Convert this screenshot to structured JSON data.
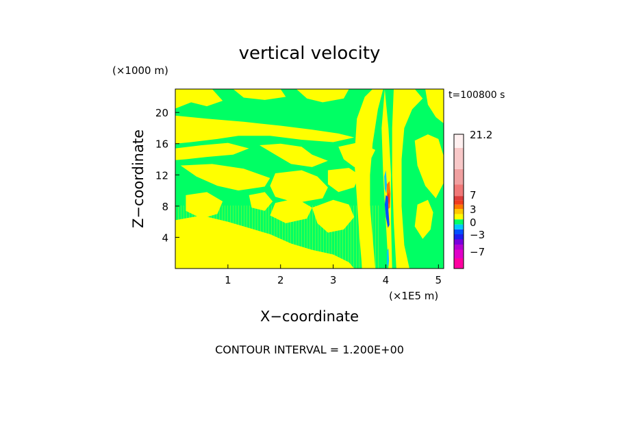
{
  "chart_data": {
    "type": "heatmap",
    "title": "vertical velocity",
    "xlabel": "X−coordinate",
    "ylabel": "Z−coordinate",
    "x_unit": "(×1E5 m)",
    "y_unit": "(×1000 m)",
    "time_label": "t=100800 s",
    "footer": "CONTOUR INTERVAL = 1.200E+00",
    "xlim": [
      0,
      5.1
    ],
    "ylim": [
      0,
      23
    ],
    "x_ticks": [
      1,
      2,
      3,
      4,
      5
    ],
    "y_ticks": [
      4,
      8,
      12,
      16,
      20
    ],
    "colorbar_labels": [
      {
        "value": 21.2,
        "text": "21.2"
      },
      {
        "value": 7,
        "text": "7"
      },
      {
        "value": 3,
        "text": "3"
      },
      {
        "value": 0,
        "text": "0"
      },
      {
        "value": -3,
        "text": "−3"
      },
      {
        "value": -7,
        "text": "−7"
      }
    ],
    "colorbar_levels": [
      {
        "from": -9.0,
        "to": -7.8,
        "color": "#ff00a0"
      },
      {
        "from": -7.8,
        "to": -6.6,
        "color": "#e000c8"
      },
      {
        "from": -6.6,
        "to": -5.4,
        "color": "#b400d2"
      },
      {
        "from": -5.4,
        "to": -4.2,
        "color": "#7800dc"
      },
      {
        "from": -4.2,
        "to": -3.0,
        "color": "#1e1ef0"
      },
      {
        "from": -3.0,
        "to": -1.8,
        "color": "#0050ff"
      },
      {
        "from": -1.8,
        "to": -0.6,
        "color": "#00c8ff"
      },
      {
        "from": -0.6,
        "to": 0.6,
        "color": "#00ff64"
      },
      {
        "from": 0.6,
        "to": 1.8,
        "color": "#ffff00"
      },
      {
        "from": 1.8,
        "to": 3.0,
        "color": "#ffc800"
      },
      {
        "from": 3.0,
        "to": 4.2,
        "color": "#ff7800"
      },
      {
        "from": 4.2,
        "to": 5.4,
        "color": "#f03c1e"
      },
      {
        "from": 5.4,
        "to": 6.6,
        "color": "#dc3c3c"
      },
      {
        "from": 6.6,
        "to": 9.4,
        "color": "#f07878"
      },
      {
        "from": 9.4,
        "to": 13.0,
        "color": "#f0a0a0"
      },
      {
        "from": 13.0,
        "to": 18.0,
        "color": "#f8c8c8"
      },
      {
        "from": 18.0,
        "to": 21.2,
        "color": "#fff0f0"
      }
    ],
    "field_colors": {
      "background": "#00ff64",
      "positive": "#ffff00",
      "updraft_core": "#ff7800",
      "updraft_strong": "#f03c1e",
      "downdraft": "#1e1ef0",
      "downdraft_weak": "#00c8ff"
    },
    "regions": [
      {
        "value": 1,
        "polygon": [
          [
            0,
            23
          ],
          [
            0.7,
            23
          ],
          [
            0.9,
            21.5
          ],
          [
            0.6,
            20.8
          ],
          [
            0.3,
            21.3
          ],
          [
            0,
            20.5
          ]
        ]
      },
      {
        "value": 1,
        "polygon": [
          [
            1.1,
            23
          ],
          [
            2.0,
            23
          ],
          [
            2.1,
            22
          ],
          [
            1.7,
            21.6
          ],
          [
            1.3,
            21.9
          ]
        ]
      },
      {
        "value": 1,
        "polygon": [
          [
            2.3,
            23
          ],
          [
            3.3,
            23
          ],
          [
            3.2,
            21.8
          ],
          [
            2.8,
            21.3
          ],
          [
            2.5,
            21.8
          ]
        ]
      },
      {
        "value": 1,
        "polygon": [
          [
            0,
            19.6
          ],
          [
            0.6,
            19.2
          ],
          [
            1.3,
            18.8
          ],
          [
            2.0,
            18.3
          ],
          [
            2.6,
            17.8
          ],
          [
            3.1,
            17.3
          ],
          [
            3.4,
            16.8
          ],
          [
            3.0,
            16.2
          ],
          [
            2.4,
            16.5
          ],
          [
            1.8,
            17.0
          ],
          [
            1.2,
            17.0
          ],
          [
            0.8,
            16.6
          ],
          [
            0.3,
            16.2
          ],
          [
            0,
            16.0
          ]
        ]
      },
      {
        "value": 1,
        "polygon": [
          [
            0,
            15.4
          ],
          [
            0.5,
            15.8
          ],
          [
            1.0,
            16.1
          ],
          [
            1.4,
            15.4
          ],
          [
            1.1,
            14.6
          ],
          [
            0.6,
            14.3
          ],
          [
            0.2,
            14.0
          ],
          [
            0,
            13.9
          ]
        ]
      },
      {
        "value": 1,
        "polygon": [
          [
            1.6,
            15.8
          ],
          [
            2.0,
            16.0
          ],
          [
            2.4,
            15.6
          ],
          [
            2.6,
            14.6
          ],
          [
            2.9,
            13.8
          ],
          [
            2.6,
            13.0
          ],
          [
            2.2,
            13.4
          ],
          [
            1.9,
            14.6
          ]
        ]
      },
      {
        "value": 1,
        "polygon": [
          [
            3.1,
            15.6
          ],
          [
            3.5,
            16.2
          ],
          [
            3.8,
            15.2
          ],
          [
            3.7,
            13.8
          ],
          [
            3.4,
            13.0
          ],
          [
            3.2,
            14.0
          ]
        ]
      },
      {
        "value": 1,
        "polygon": [
          [
            0.1,
            13.2
          ],
          [
            0.7,
            13.4
          ],
          [
            1.3,
            12.8
          ],
          [
            1.8,
            11.6
          ],
          [
            1.7,
            10.5
          ],
          [
            1.2,
            10.0
          ],
          [
            0.8,
            10.6
          ],
          [
            0.4,
            11.8
          ]
        ]
      },
      {
        "value": 1,
        "polygon": [
          [
            1.9,
            12.2
          ],
          [
            2.4,
            12.6
          ],
          [
            2.7,
            11.8
          ],
          [
            2.9,
            10.4
          ],
          [
            2.8,
            9.0
          ],
          [
            2.3,
            8.4
          ],
          [
            1.9,
            9.2
          ],
          [
            1.8,
            10.6
          ]
        ]
      },
      {
        "value": 1,
        "polygon": [
          [
            2.9,
            12.6
          ],
          [
            3.3,
            12.9
          ],
          [
            3.5,
            12.0
          ],
          [
            3.4,
            10.4
          ],
          [
            3.1,
            9.8
          ],
          [
            2.9,
            10.8
          ]
        ]
      },
      {
        "value": 1,
        "polygon": [
          [
            1.9,
            8.4
          ],
          [
            2.3,
            9.0
          ],
          [
            2.6,
            7.8
          ],
          [
            2.5,
            6.4
          ],
          [
            2.1,
            5.8
          ],
          [
            1.8,
            6.8
          ]
        ]
      },
      {
        "value": 1,
        "polygon": [
          [
            0.2,
            9.4
          ],
          [
            0.6,
            9.8
          ],
          [
            0.9,
            8.6
          ],
          [
            0.8,
            7.0
          ],
          [
            0.5,
            6.4
          ],
          [
            0.2,
            7.4
          ]
        ]
      },
      {
        "value": 1,
        "polygon": [
          [
            2.6,
            7.8
          ],
          [
            3.0,
            8.8
          ],
          [
            3.3,
            8.2
          ],
          [
            3.4,
            6.6
          ],
          [
            3.2,
            5.0
          ],
          [
            2.9,
            4.6
          ],
          [
            2.7,
            5.8
          ]
        ]
      },
      {
        "value": 1,
        "polygon": [
          [
            3.45,
            19.2
          ],
          [
            3.6,
            22.0
          ],
          [
            3.75,
            23
          ],
          [
            3.95,
            23
          ],
          [
            3.85,
            20.4
          ],
          [
            3.75,
            16.0
          ],
          [
            3.7,
            12.0
          ],
          [
            3.7,
            8.0
          ],
          [
            3.75,
            4.0
          ],
          [
            3.8,
            0
          ],
          [
            3.55,
            0
          ],
          [
            3.5,
            4.0
          ],
          [
            3.45,
            9.0
          ],
          [
            3.4,
            14.0
          ]
        ]
      },
      {
        "value": 1,
        "polygon": [
          [
            3.98,
            23
          ],
          [
            4.05,
            18.0
          ],
          [
            4.1,
            12.0
          ],
          [
            4.1,
            6.0
          ],
          [
            4.12,
            0
          ],
          [
            4.05,
            0
          ],
          [
            4.0,
            6.0
          ],
          [
            3.95,
            12.0
          ],
          [
            3.92,
            18.0
          ]
        ]
      },
      {
        "value": 1,
        "polygon": [
          [
            4.15,
            23
          ],
          [
            4.55,
            23
          ],
          [
            4.7,
            21.8
          ],
          [
            4.5,
            20.4
          ],
          [
            4.35,
            18.0
          ],
          [
            4.3,
            14.0
          ],
          [
            4.3,
            8.0
          ],
          [
            4.35,
            3.0
          ],
          [
            4.45,
            0
          ],
          [
            4.2,
            0
          ],
          [
            4.15,
            6.0
          ],
          [
            4.12,
            12.0
          ],
          [
            4.12,
            18.0
          ]
        ]
      },
      {
        "value": 1,
        "polygon": [
          [
            4.55,
            16.4
          ],
          [
            4.8,
            17.2
          ],
          [
            5.0,
            16.6
          ],
          [
            5.1,
            14.4
          ],
          [
            5.1,
            11.0
          ],
          [
            4.95,
            9.0
          ],
          [
            4.75,
            10.6
          ],
          [
            4.6,
            13.2
          ]
        ]
      },
      {
        "value": 1,
        "polygon": [
          [
            4.6,
            8.2
          ],
          [
            4.8,
            8.8
          ],
          [
            4.9,
            7.2
          ],
          [
            4.85,
            5.0
          ],
          [
            4.7,
            3.8
          ],
          [
            4.55,
            5.4
          ]
        ]
      },
      {
        "value": 1,
        "polygon": [
          [
            4.75,
            23
          ],
          [
            5.1,
            23
          ],
          [
            5.1,
            18.6
          ],
          [
            4.95,
            19.4
          ],
          [
            4.8,
            21.0
          ]
        ]
      },
      {
        "value": 1,
        "polygon": [
          [
            0,
            6.2
          ],
          [
            0.5,
            6.8
          ],
          [
            1.0,
            6.0
          ],
          [
            1.4,
            5.2
          ],
          [
            1.8,
            4.4
          ],
          [
            2.2,
            3.2
          ],
          [
            2.6,
            2.4
          ],
          [
            3.0,
            1.8
          ],
          [
            3.3,
            0.8
          ],
          [
            3.4,
            0
          ],
          [
            0,
            0
          ]
        ]
      },
      {
        "value": 1,
        "polygon": [
          [
            1.4,
            9.4
          ],
          [
            1.7,
            9.8
          ],
          [
            1.85,
            8.6
          ],
          [
            1.7,
            7.4
          ],
          [
            1.45,
            7.8
          ]
        ]
      },
      {
        "value": 3,
        "polygon": [
          [
            4.02,
            10.8
          ],
          [
            4.07,
            11.2
          ],
          [
            4.09,
            9.6
          ],
          [
            4.08,
            7.8
          ],
          [
            4.04,
            7.6
          ],
          [
            4.02,
            9.2
          ]
        ]
      },
      {
        "value": 5,
        "polygon": [
          [
            4.03,
            9.4
          ],
          [
            4.06,
            9.8
          ],
          [
            4.075,
            8.8
          ],
          [
            4.06,
            8.2
          ],
          [
            4.04,
            8.6
          ]
        ]
      },
      {
        "value": -3,
        "polygon": [
          [
            4.0,
            9.4
          ],
          [
            4.04,
            9.2
          ],
          [
            4.05,
            7.4
          ],
          [
            4.07,
            5.6
          ],
          [
            4.04,
            5.2
          ],
          [
            4.0,
            6.6
          ],
          [
            3.98,
            8.2
          ]
        ]
      },
      {
        "value": -1,
        "polygon": [
          [
            3.97,
            11.8
          ],
          [
            4.0,
            12.6
          ],
          [
            4.02,
            10.8
          ],
          [
            4.01,
            9.6
          ],
          [
            3.98,
            10.2
          ]
        ]
      },
      {
        "value": -1,
        "polygon": [
          [
            4.02,
            2.2
          ],
          [
            4.05,
            2.6
          ],
          [
            4.06,
            1.0
          ],
          [
            4.05,
            0.2
          ],
          [
            4.02,
            0.6
          ]
        ]
      }
    ]
  }
}
